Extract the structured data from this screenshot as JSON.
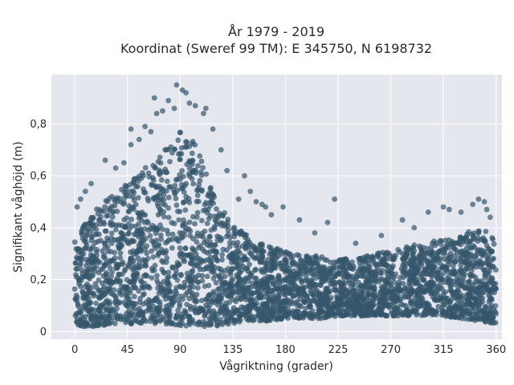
{
  "chart_data": {
    "type": "scatter",
    "title": "År 1979 - 2019",
    "subtitle": "Koordinat (Sweref 99 TM): E 345750, N 6198732",
    "xlabel": "Vågriktning (grader)",
    "ylabel": "Signifikant våghöjd (m)",
    "xlim": [
      -20,
      365
    ],
    "ylim": [
      -0.03,
      0.99
    ],
    "x_ticks": [
      0,
      45,
      90,
      135,
      180,
      225,
      270,
      315,
      360
    ],
    "x_tick_labels": [
      "0",
      "45",
      "90",
      "135",
      "180",
      "225",
      "270",
      "315",
      "360"
    ],
    "y_ticks": [
      0,
      0.2,
      0.4,
      0.6,
      0.8
    ],
    "y_tick_labels": [
      "0",
      "0,2",
      "0,4",
      "0,6",
      "0,8"
    ],
    "grid": true,
    "marker_color": "#34566b",
    "background_color": "#e5e7ef",
    "envelope": {
      "x": [
        0,
        10,
        20,
        30,
        45,
        60,
        75,
        90,
        100,
        110,
        120,
        135,
        150,
        165,
        180,
        195,
        210,
        225,
        240,
        255,
        270,
        285,
        300,
        315,
        330,
        345,
        360
      ],
      "y_min": [
        0.02,
        0.02,
        0.02,
        0.03,
        0.03,
        0.03,
        0.03,
        0.02,
        0.02,
        0.02,
        0.02,
        0.03,
        0.04,
        0.04,
        0.05,
        0.05,
        0.05,
        0.06,
        0.06,
        0.06,
        0.06,
        0.06,
        0.06,
        0.06,
        0.05,
        0.04,
        0.03
      ],
      "y_max": [
        0.37,
        0.42,
        0.48,
        0.52,
        0.57,
        0.63,
        0.69,
        0.77,
        0.76,
        0.66,
        0.52,
        0.42,
        0.36,
        0.33,
        0.31,
        0.3,
        0.29,
        0.28,
        0.28,
        0.3,
        0.31,
        0.33,
        0.34,
        0.36,
        0.38,
        0.39,
        0.38
      ]
    },
    "outliers": [
      {
        "x": 2,
        "y": 0.48
      },
      {
        "x": 5,
        "y": 0.51
      },
      {
        "x": 9,
        "y": 0.54
      },
      {
        "x": 14,
        "y": 0.57
      },
      {
        "x": 26,
        "y": 0.66
      },
      {
        "x": 35,
        "y": 0.63
      },
      {
        "x": 42,
        "y": 0.65
      },
      {
        "x": 48,
        "y": 0.72
      },
      {
        "x": 48,
        "y": 0.78
      },
      {
        "x": 55,
        "y": 0.74
      },
      {
        "x": 60,
        "y": 0.79
      },
      {
        "x": 65,
        "y": 0.77
      },
      {
        "x": 68,
        "y": 0.9
      },
      {
        "x": 70,
        "y": 0.84
      },
      {
        "x": 75,
        "y": 0.85
      },
      {
        "x": 80,
        "y": 0.89
      },
      {
        "x": 85,
        "y": 0.86
      },
      {
        "x": 87,
        "y": 0.95
      },
      {
        "x": 92,
        "y": 0.93
      },
      {
        "x": 95,
        "y": 0.92
      },
      {
        "x": 98,
        "y": 0.88
      },
      {
        "x": 103,
        "y": 0.87
      },
      {
        "x": 110,
        "y": 0.84
      },
      {
        "x": 112,
        "y": 0.86
      },
      {
        "x": 118,
        "y": 0.78
      },
      {
        "x": 125,
        "y": 0.7
      },
      {
        "x": 130,
        "y": 0.62
      },
      {
        "x": 140,
        "y": 0.51
      },
      {
        "x": 145,
        "y": 0.6
      },
      {
        "x": 150,
        "y": 0.54
      },
      {
        "x": 155,
        "y": 0.5
      },
      {
        "x": 160,
        "y": 0.49
      },
      {
        "x": 163,
        "y": 0.48
      },
      {
        "x": 168,
        "y": 0.45
      },
      {
        "x": 178,
        "y": 0.48
      },
      {
        "x": 192,
        "y": 0.43
      },
      {
        "x": 205,
        "y": 0.38
      },
      {
        "x": 216,
        "y": 0.42
      },
      {
        "x": 222,
        "y": 0.51
      },
      {
        "x": 240,
        "y": 0.34
      },
      {
        "x": 262,
        "y": 0.37
      },
      {
        "x": 280,
        "y": 0.43
      },
      {
        "x": 290,
        "y": 0.4
      },
      {
        "x": 302,
        "y": 0.46
      },
      {
        "x": 315,
        "y": 0.48
      },
      {
        "x": 320,
        "y": 0.47
      },
      {
        "x": 330,
        "y": 0.46
      },
      {
        "x": 340,
        "y": 0.49
      },
      {
        "x": 345,
        "y": 0.51
      },
      {
        "x": 350,
        "y": 0.5
      },
      {
        "x": 352,
        "y": 0.47
      },
      {
        "x": 355,
        "y": 0.44
      }
    ]
  }
}
